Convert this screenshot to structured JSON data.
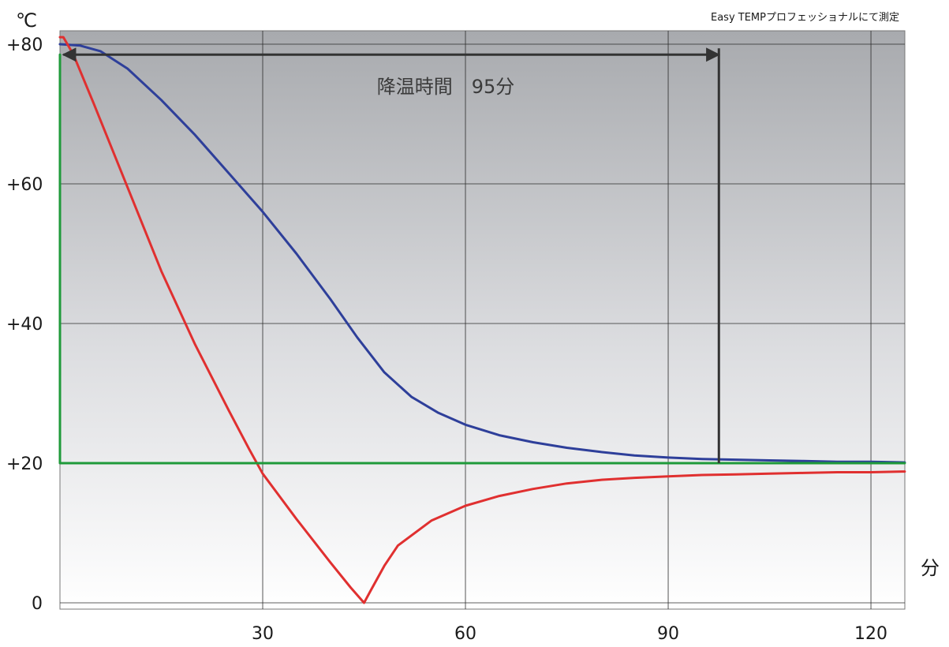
{
  "chart_data": {
    "type": "line",
    "title": "",
    "note": "Easy TEMPプロフェッショナルにて測定",
    "xlabel": "分",
    "ylabel": "℃",
    "xlim": [
      0,
      125
    ],
    "ylim": [
      0,
      80
    ],
    "x_ticks": [
      30,
      60,
      90,
      120
    ],
    "x_tick_labels": [
      "30",
      "60",
      "90",
      "120"
    ],
    "y_ticks": [
      0,
      20,
      40,
      60,
      80
    ],
    "y_tick_labels": [
      "0",
      "+20",
      "+40",
      "+60",
      "+80"
    ],
    "grid": true,
    "background": "gradient gray (top) to white (bottom)",
    "series": [
      {
        "color": "#2e3f9a",
        "x": [
          0,
          3,
          6,
          10,
          15,
          20,
          25,
          30,
          35,
          40,
          44,
          48,
          52,
          56,
          60,
          65,
          70,
          75,
          80,
          85,
          90,
          95,
          100,
          105,
          110,
          115,
          120,
          125
        ],
        "y": [
          80,
          79.8,
          79,
          76.5,
          72,
          67,
          61.5,
          56,
          50,
          43.5,
          38,
          33,
          29.5,
          27.2,
          25.5,
          24,
          23,
          22.2,
          21.6,
          21.1,
          20.8,
          20.6,
          20.5,
          20.4,
          20.3,
          20.2,
          20.2,
          20.1
        ]
      },
      {
        "color": "#e03030",
        "x": [
          0,
          0.5,
          2,
          5,
          10,
          15,
          20,
          25,
          28,
          30,
          35,
          40,
          43,
          45,
          46,
          48,
          50,
          55,
          60,
          65,
          70,
          75,
          80,
          85,
          90,
          95,
          100,
          105,
          110,
          115,
          120,
          125
        ],
        "y": [
          81,
          81,
          78.5,
          71.5,
          59.5,
          47.5,
          37,
          27.5,
          22,
          18.5,
          12,
          5.8,
          2.2,
          0,
          1.8,
          5.3,
          8.2,
          11.8,
          13.9,
          15.3,
          16.3,
          17.1,
          17.6,
          17.9,
          18.1,
          18.3,
          18.4,
          18.5,
          18.6,
          18.7,
          18.7,
          18.8
        ]
      },
      {
        "color": "#1f9a3a",
        "x": [
          0,
          0,
          125
        ],
        "y": [
          78.5,
          20,
          20
        ]
      }
    ],
    "annotations": [
      {
        "text": "降温時間　95分",
        "from_x": 0.5,
        "to_x": 97.5,
        "y": 78.5,
        "marker_x": 97.5,
        "marker_y_bottom": 20
      }
    ]
  }
}
